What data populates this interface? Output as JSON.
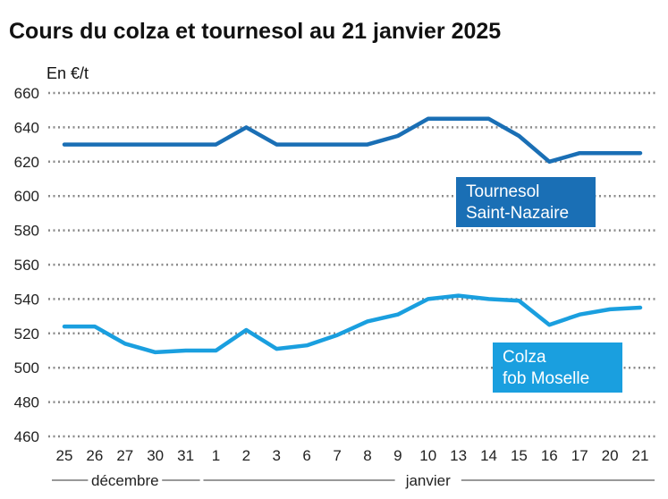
{
  "chart_data": {
    "type": "line",
    "title": "Cours du colza et tournesol au 21 janvier 2025",
    "unit_label": "En €/t",
    "ylim": [
      460,
      660
    ],
    "yticks": [
      460,
      480,
      500,
      520,
      540,
      560,
      580,
      600,
      620,
      640,
      660
    ],
    "grid": "horizontal dotted",
    "categories": [
      "25",
      "26",
      "27",
      "30",
      "31",
      "1",
      "2",
      "3",
      "6",
      "7",
      "8",
      "9",
      "10",
      "13",
      "14",
      "15",
      "16",
      "17",
      "20",
      "21"
    ],
    "months": [
      {
        "label": "décembre",
        "from": 0,
        "to": 4
      },
      {
        "label": "janvier",
        "from": 5,
        "to": 19
      }
    ],
    "series": [
      {
        "name": "Tournesol Saint-Nazaire",
        "label_lines": [
          "Tournesol",
          "Saint-Nazaire"
        ],
        "color": "#1a6fb5",
        "values": [
          630,
          630,
          630,
          630,
          630,
          630,
          640,
          630,
          630,
          630,
          630,
          635,
          645,
          645,
          645,
          635,
          620,
          625,
          625,
          625
        ]
      },
      {
        "name": "Colza fob Moselle",
        "label_lines": [
          "Colza",
          "fob Moselle"
        ],
        "color": "#1a9fdf",
        "values": [
          524,
          524,
          514,
          509,
          510,
          510,
          522,
          511,
          513,
          519,
          527,
          531,
          540,
          542,
          540,
          539,
          525,
          531,
          534,
          535
        ]
      }
    ]
  }
}
